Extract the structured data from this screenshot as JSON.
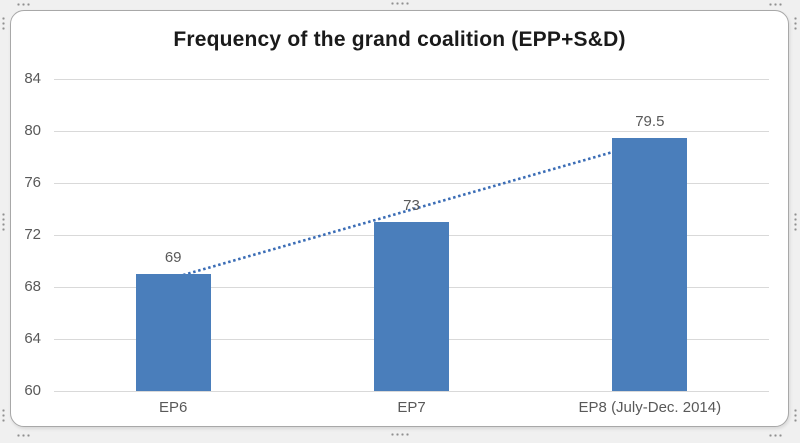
{
  "page": {
    "background": "#f0f0f0",
    "frame_background": "#ffffff",
    "frame_border": "#a8a8a8"
  },
  "chart_data": {
    "type": "bar",
    "title": "Frequency of the grand coalition (EPP+S&D)",
    "categories": [
      "EP6",
      "EP7",
      "EP8 (July-Dec. 2014)"
    ],
    "values": [
      69,
      73,
      79.5
    ],
    "value_labels": [
      "69",
      "73",
      "79.5"
    ],
    "y_ticks": [
      84,
      80,
      76,
      72,
      68,
      64,
      60
    ],
    "ylim": [
      60,
      84
    ],
    "xlabel": "",
    "ylabel": "",
    "grid": true,
    "legend": "none",
    "bar_color": "#4a7ebb",
    "gridline_color": "#d9d9d9",
    "axis_text_color": "#595959",
    "title_color": "#1a1a1a",
    "trendline": {
      "type": "linear",
      "style": "dotted",
      "color": "#3a6cb5",
      "start_value": 68.7,
      "end_value": 79.2
    }
  },
  "decorations": {
    "selection_handles": "dotted resize handles on edges and corners of embedded chart"
  }
}
